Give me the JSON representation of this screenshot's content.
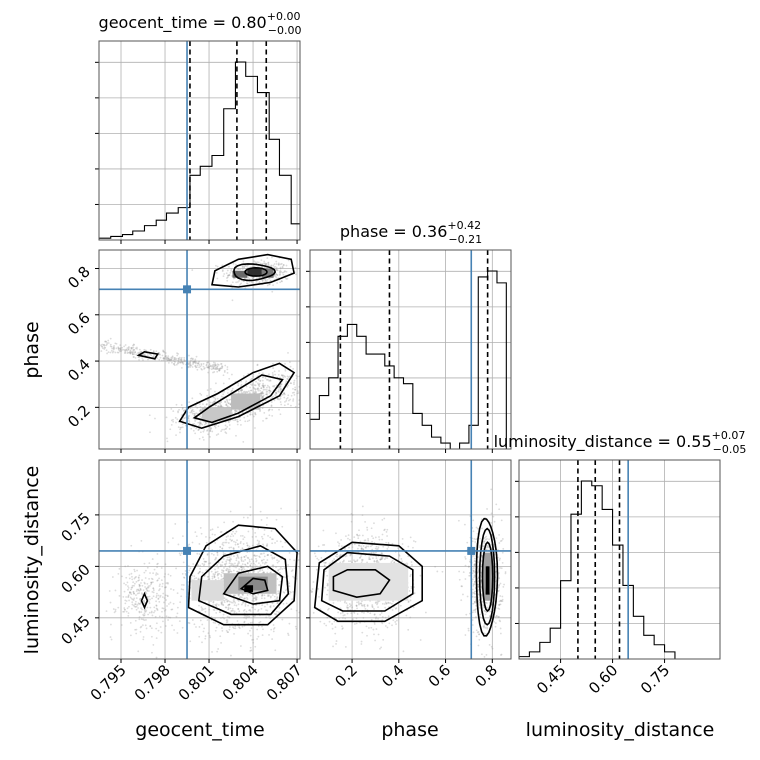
{
  "chart_data": {
    "type": "corner",
    "parameters": [
      "geocent_time",
      "phase",
      "luminosity_distance"
    ],
    "titles": {
      "geocent_time": {
        "name": "geocent_time",
        "median": "0.80",
        "plus": "+0.00",
        "minus": "−0.00"
      },
      "phase": {
        "name": "phase",
        "median": "0.36",
        "plus": "+0.42",
        "minus": "−0.21"
      },
      "luminosity_distance": {
        "name": "luminosity_distance",
        "median": "0.55",
        "plus": "+0.07",
        "minus": "−0.05"
      }
    },
    "ranges": {
      "geocent_time": [
        0.7935,
        0.8072
      ],
      "phase": [
        0.02,
        0.88
      ],
      "luminosity_distance": [
        0.33,
        0.91
      ]
    },
    "ticks": {
      "geocent_time": {
        "values": [
          0.795,
          0.798,
          0.801,
          0.804,
          0.807
        ],
        "labels": [
          "0.795",
          "0.798",
          "0.801",
          "0.804",
          "0.807"
        ]
      },
      "phase": {
        "values": [
          0.2,
          0.4,
          0.6,
          0.8
        ],
        "labels": [
          "0.2",
          "0.4",
          "0.6",
          "0.8"
        ]
      },
      "luminosity_distance": {
        "values": [
          0.45,
          0.6,
          0.75
        ],
        "labels": [
          "0.45",
          "0.60",
          "0.75"
        ]
      }
    },
    "truths": {
      "geocent_time": 0.7995,
      "phase": 0.71,
      "luminosity_distance": 0.645
    },
    "quantiles": {
      "geocent_time": [
        0.7997,
        0.8029,
        0.8049
      ],
      "phase": [
        0.15,
        0.36,
        0.78
      ],
      "luminosity_distance": [
        0.5,
        0.55,
        0.62
      ]
    },
    "histograms": {
      "geocent_time": {
        "edges": [
          0.7935,
          0.7943,
          0.7951,
          0.7958,
          0.7966,
          0.7974,
          0.7981,
          0.7989,
          0.7997,
          0.8004,
          0.8012,
          0.802,
          0.8028,
          0.8035,
          0.8043,
          0.8051,
          0.8058,
          0.8066,
          0.8072
        ],
        "counts": [
          1,
          2,
          3,
          5,
          8,
          11,
          15,
          18,
          36,
          41,
          47,
          73,
          99,
          91,
          82,
          56,
          36,
          9
        ]
      },
      "phase": {
        "edges": [
          0.02,
          0.06,
          0.1,
          0.14,
          0.18,
          0.22,
          0.26,
          0.3,
          0.34,
          0.38,
          0.42,
          0.46,
          0.5,
          0.54,
          0.58,
          0.62,
          0.66,
          0.7,
          0.74,
          0.78,
          0.82,
          0.86
        ],
        "counts": [
          5,
          9,
          12,
          19,
          21,
          19,
          16,
          16,
          14,
          12,
          11,
          6,
          4,
          2,
          1,
          0,
          1,
          4,
          29,
          30,
          28
        ]
      },
      "luminosity_distance": {
        "edges": [
          0.33,
          0.36,
          0.39,
          0.42,
          0.45,
          0.48,
          0.51,
          0.54,
          0.57,
          0.6,
          0.63,
          0.66,
          0.69,
          0.72,
          0.75,
          0.78
        ],
        "counts": [
          1,
          3,
          7,
          13,
          33,
          61,
          75,
          73,
          63,
          48,
          31,
          18,
          10,
          6,
          3
        ]
      }
    },
    "grid": true,
    "axis_labels": {
      "geocent_time": "geocent_time",
      "phase": "phase",
      "luminosity_distance": "luminosity_distance"
    },
    "colors": {
      "truth": "#4682b4",
      "density": "#000000",
      "scatter": "#9a9a9a",
      "grid": "#b0b0b0"
    }
  }
}
